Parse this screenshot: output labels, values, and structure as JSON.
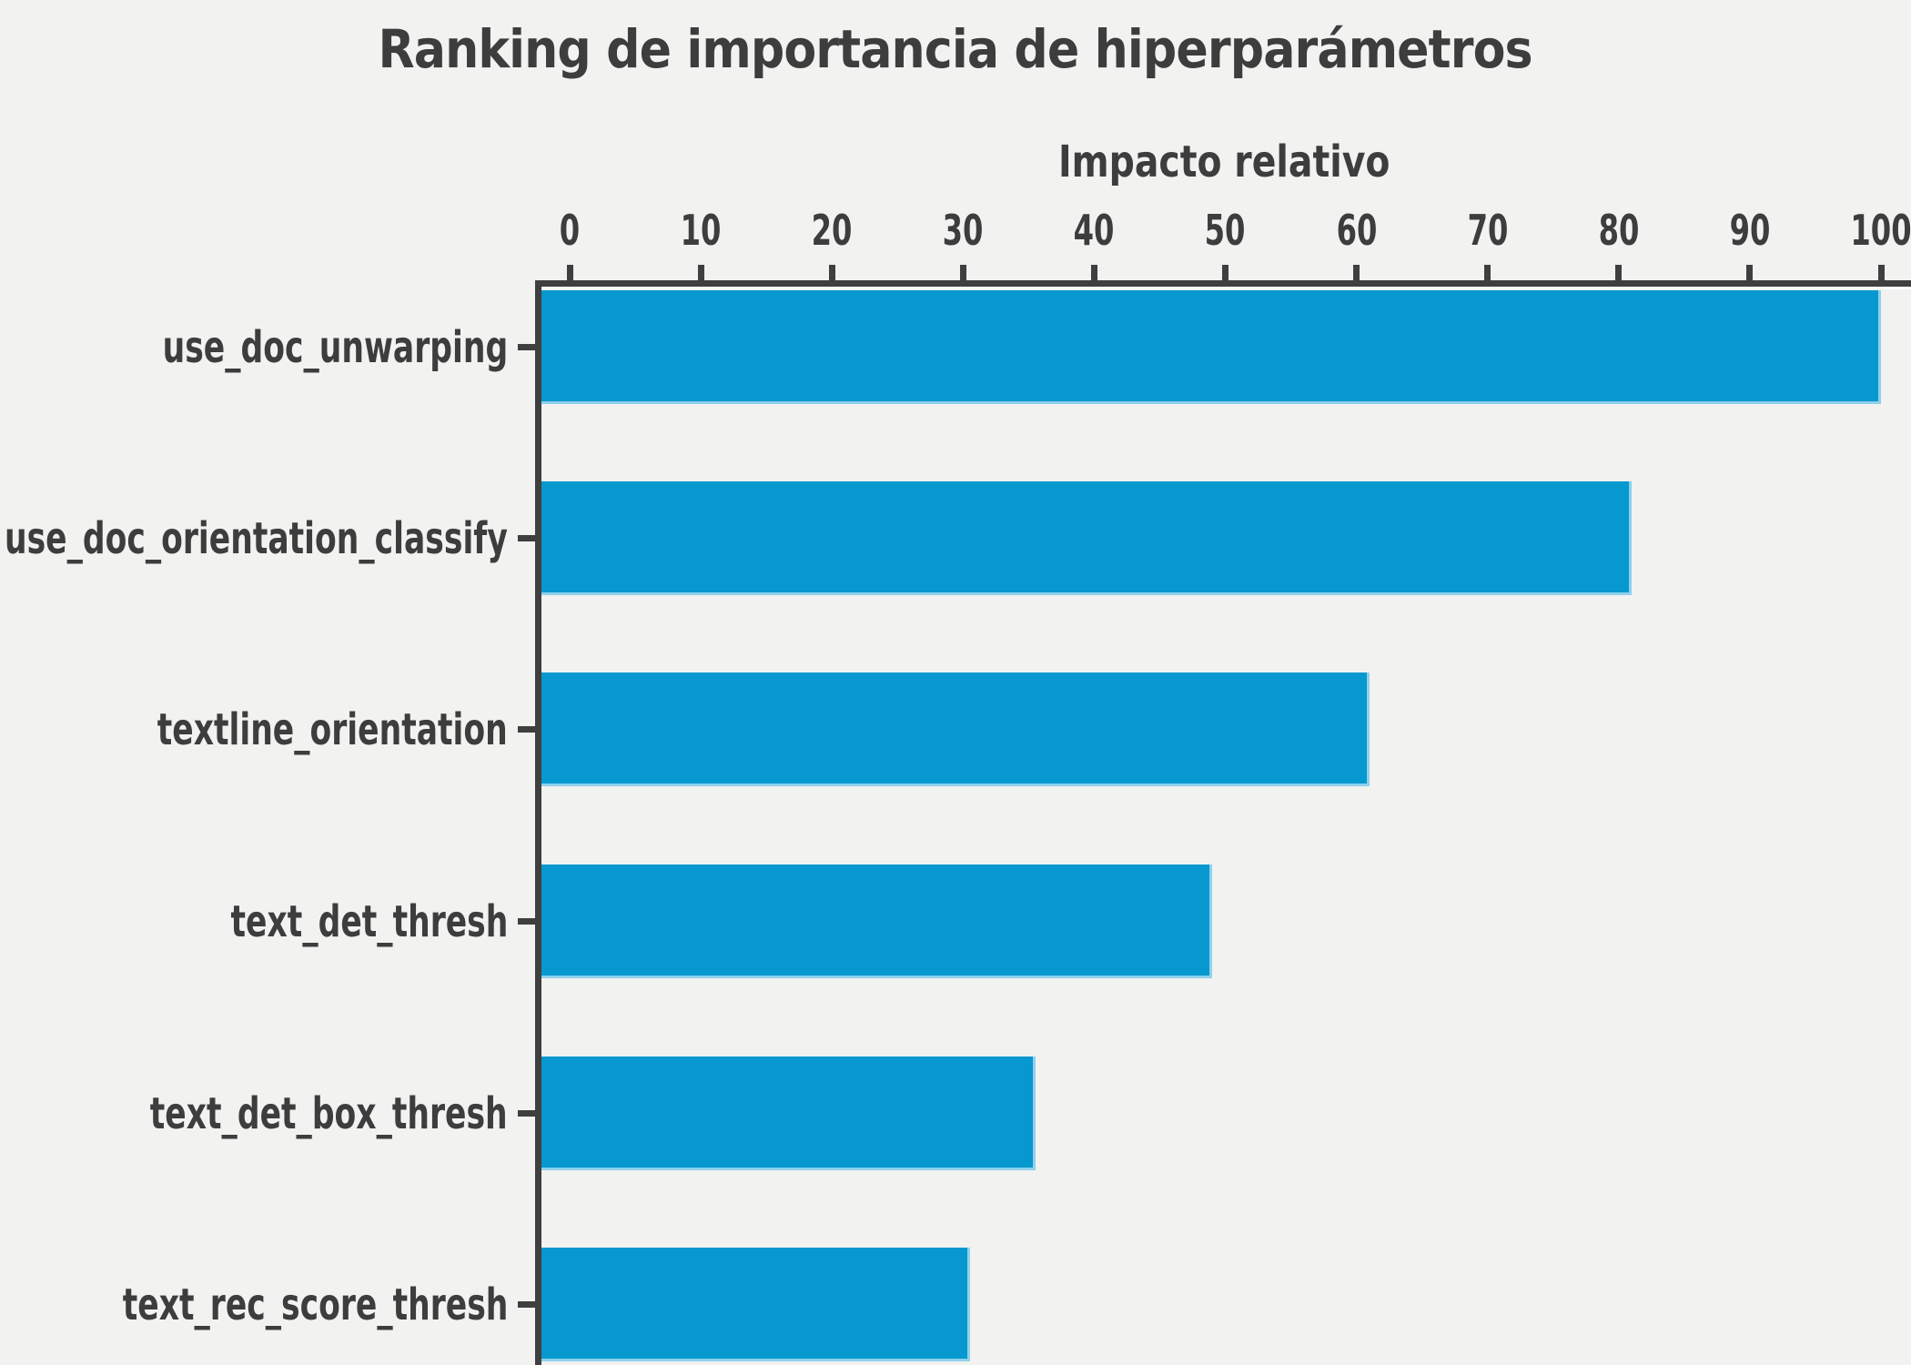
{
  "chart_data": {
    "type": "bar",
    "orientation": "horizontal",
    "title": "Ranking de importancia de hiperparámetros",
    "xlabel": "Impacto relativo",
    "categories": [
      "use_doc_unwarping",
      "use_doc_orientation_classify",
      "textline_orientation",
      "text_det_thresh",
      "text_det_box_thresh",
      "text_rec_score_thresh"
    ],
    "values": [
      100,
      81,
      61,
      49,
      35.5,
      30.5
    ],
    "x_ticks": [
      0,
      10,
      20,
      30,
      40,
      50,
      60,
      70,
      80,
      90,
      100
    ],
    "xlim": [
      0,
      102
    ],
    "tick_side": "top",
    "grid": false,
    "legend_position": "none",
    "colors": {
      "bar": "#0698ce",
      "bar_edge": "#8ed1ec",
      "text": "#3d3d3d",
      "spine": "#3f3f3f",
      "background": "#f2f2f1"
    }
  }
}
